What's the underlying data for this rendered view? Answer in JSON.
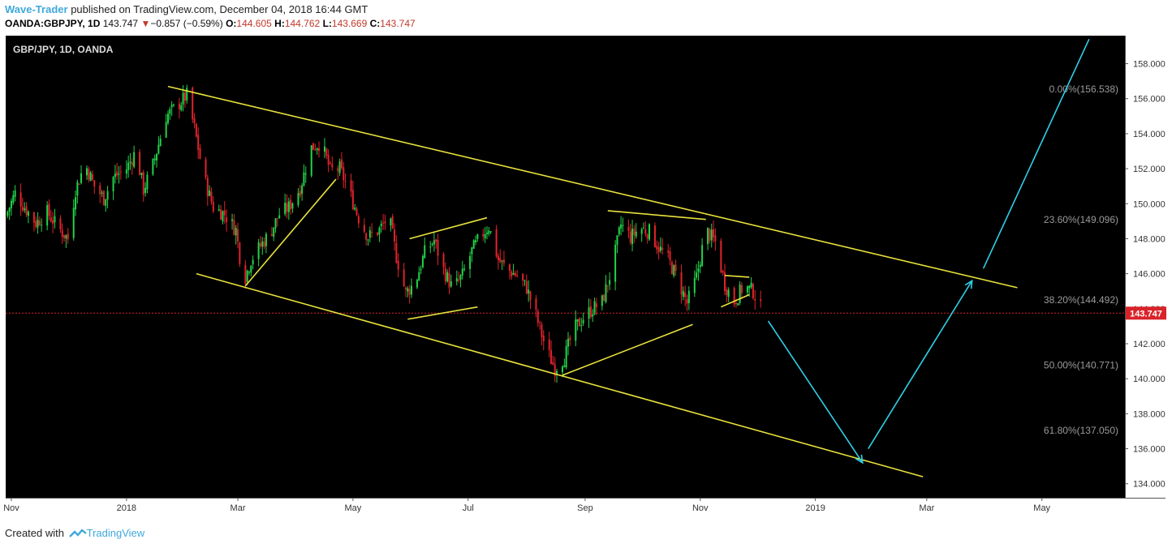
{
  "header": {
    "author": "Wave-Trader",
    "published_text": "published on TradingView.com, December 04, 2018 16:44 GMT",
    "symbol": "OANDA:GBPJPY, 1D",
    "last": "143.747",
    "change_arrow": "▼",
    "change": "−0.857 (−0.59%)",
    "o_label": "O:",
    "o_value": "144.605",
    "h_label": "H:",
    "h_value": "144.762",
    "l_label": "L:",
    "l_value": "143.669",
    "c_label": "C:",
    "c_value": "143.747"
  },
  "footer": {
    "created_with": "Created with",
    "brand": "TradingView"
  },
  "colors": {
    "background": "#000000",
    "up": "#22d34a",
    "down": "#e0232b",
    "trendline": "#e8e23c",
    "projection": "#2fd0e8",
    "price_line": "#d9232a",
    "fib_text": "#9a9a9a"
  },
  "chart_data": {
    "type": "candlestick",
    "title": "GBP/JPY, 1D, OANDA",
    "y_ticks": [
      134,
      136,
      138,
      140,
      142,
      144,
      146,
      148,
      150,
      152,
      154,
      156,
      158
    ],
    "y_tick_labels": [
      "134.000",
      "136.000",
      "138.000",
      "140.000",
      "142.000",
      "144.000",
      "146.000",
      "148.000",
      "150.000",
      "152.000",
      "154.000",
      "156.000",
      "158.000"
    ],
    "ylim": [
      133.2,
      159.6
    ],
    "x_labels": [
      "Nov",
      "2018",
      "Mar",
      "May",
      "Jul",
      "Sep",
      "Nov",
      "2019",
      "Mar",
      "May"
    ],
    "x_range": [
      "2017-10-29",
      "2019-06-14"
    ],
    "last_price": 143.747,
    "last_price_label": "143.747",
    "fibonacci": [
      {
        "label": "0.00%(156.538)",
        "value": 156.538
      },
      {
        "label": "23.60%(149.096)",
        "value": 149.096
      },
      {
        "label": "38.20%(144.492)",
        "value": 144.492
      },
      {
        "label": "50.00%(140.771)",
        "value": 140.771
      },
      {
        "label": "61.80%(137.050)",
        "value": 137.05
      }
    ],
    "price_path": [
      [
        "2017-10-29",
        149.3
      ],
      [
        "2017-11-03",
        150.6
      ],
      [
        "2017-11-08",
        149.8
      ],
      [
        "2017-11-14",
        148.9
      ],
      [
        "2017-11-20",
        149.5
      ],
      [
        "2017-11-26",
        148.6
      ],
      [
        "2017-12-01",
        148.0
      ],
      [
        "2017-12-05",
        150.8
      ],
      [
        "2017-12-10",
        152.3
      ],
      [
        "2017-12-15",
        151.0
      ],
      [
        "2017-12-20",
        150.3
      ],
      [
        "2017-12-25",
        151.5
      ],
      [
        "2018-01-01",
        152.0
      ],
      [
        "2018-01-06",
        153.0
      ],
      [
        "2018-01-10",
        150.8
      ],
      [
        "2018-01-15",
        152.2
      ],
      [
        "2018-01-22",
        155.0
      ],
      [
        "2018-01-28",
        155.6
      ],
      [
        "2018-02-02",
        156.2
      ],
      [
        "2018-02-06",
        154.3
      ],
      [
        "2018-02-11",
        151.5
      ],
      [
        "2018-02-16",
        149.8
      ],
      [
        "2018-02-22",
        149.4
      ],
      [
        "2018-02-28",
        148.5
      ],
      [
        "2018-03-04",
        145.5
      ],
      [
        "2018-03-08",
        146.8
      ],
      [
        "2018-03-13",
        147.6
      ],
      [
        "2018-03-18",
        148.3
      ],
      [
        "2018-03-23",
        149.4
      ],
      [
        "2018-03-28",
        149.8
      ],
      [
        "2018-04-03",
        150.9
      ],
      [
        "2018-04-09",
        153.2
      ],
      [
        "2018-04-14",
        153.5
      ],
      [
        "2018-04-19",
        151.9
      ],
      [
        "2018-04-24",
        152.0
      ],
      [
        "2018-04-29",
        150.7
      ],
      [
        "2018-05-04",
        149.2
      ],
      [
        "2018-05-09",
        148.1
      ],
      [
        "2018-05-15",
        148.5
      ],
      [
        "2018-05-20",
        149.3
      ],
      [
        "2018-05-24",
        147.0
      ],
      [
        "2018-05-29",
        144.9
      ],
      [
        "2018-06-03",
        145.5
      ],
      [
        "2018-06-08",
        147.2
      ],
      [
        "2018-06-13",
        147.9
      ],
      [
        "2018-06-18",
        146.2
      ],
      [
        "2018-06-23",
        145.1
      ],
      [
        "2018-06-28",
        145.9
      ],
      [
        "2018-07-03",
        147.3
      ],
      [
        "2018-07-08",
        148.2
      ],
      [
        "2018-07-12",
        148.7
      ],
      [
        "2018-07-17",
        146.8
      ],
      [
        "2018-07-22",
        146.2
      ],
      [
        "2018-07-27",
        145.9
      ],
      [
        "2018-08-01",
        145.2
      ],
      [
        "2018-08-06",
        143.6
      ],
      [
        "2018-08-11",
        141.8
      ],
      [
        "2018-08-16",
        140.6
      ],
      [
        "2018-08-21",
        141.2
      ],
      [
        "2018-08-26",
        142.8
      ],
      [
        "2018-08-31",
        143.5
      ],
      [
        "2018-09-05",
        144.0
      ],
      [
        "2018-09-10",
        144.4
      ],
      [
        "2018-09-15",
        146.2
      ],
      [
        "2018-09-20",
        148.8
      ],
      [
        "2018-09-25",
        148.1
      ],
      [
        "2018-09-30",
        148.6
      ],
      [
        "2018-10-05",
        148.4
      ],
      [
        "2018-10-10",
        147.5
      ],
      [
        "2018-10-15",
        146.8
      ],
      [
        "2018-10-20",
        145.7
      ],
      [
        "2018-10-25",
        144.3
      ],
      [
        "2018-10-30",
        145.8
      ],
      [
        "2018-11-04",
        148.5
      ],
      [
        "2018-11-09",
        147.8
      ],
      [
        "2018-11-14",
        145.4
      ],
      [
        "2018-11-19",
        144.4
      ],
      [
        "2018-11-24",
        145.3
      ],
      [
        "2018-11-29",
        145.0
      ],
      [
        "2018-12-04",
        143.75
      ]
    ],
    "annotations": [
      {
        "kind": "trendline",
        "color": "trendline",
        "points": [
          [
            "2018-01-23",
            156.7
          ],
          [
            "2019-04-18",
            145.2
          ]
        ]
      },
      {
        "kind": "trendline",
        "color": "trendline",
        "points": [
          [
            "2018-02-07",
            146.0
          ],
          [
            "2019-02-27",
            134.4
          ]
        ]
      },
      {
        "kind": "trendline",
        "color": "trendline",
        "points": [
          [
            "2018-03-05",
            145.3
          ],
          [
            "2018-04-22",
            151.4
          ]
        ]
      },
      {
        "kind": "trendline",
        "color": "trendline",
        "points": [
          [
            "2018-05-31",
            148.0
          ],
          [
            "2018-07-11",
            149.2
          ]
        ]
      },
      {
        "kind": "trendline",
        "color": "trendline",
        "points": [
          [
            "2018-05-30",
            143.4
          ],
          [
            "2018-07-06",
            144.1
          ]
        ]
      },
      {
        "kind": "trendline",
        "color": "trendline",
        "points": [
          [
            "2018-08-20",
            140.2
          ],
          [
            "2018-10-28",
            143.1
          ]
        ]
      },
      {
        "kind": "trendline",
        "color": "trendline",
        "points": [
          [
            "2018-09-13",
            149.6
          ],
          [
            "2018-11-04",
            149.1
          ]
        ]
      },
      {
        "kind": "trendline",
        "color": "trendline",
        "points": [
          [
            "2018-11-14",
            145.9
          ],
          [
            "2018-11-27",
            145.8
          ]
        ]
      },
      {
        "kind": "trendline",
        "color": "trendline",
        "points": [
          [
            "2018-11-12",
            144.1
          ],
          [
            "2018-11-27",
            144.8
          ]
        ]
      },
      {
        "kind": "arrow",
        "color": "projection",
        "points": [
          [
            "2018-12-07",
            143.3
          ],
          [
            "2019-01-26",
            135.2
          ]
        ]
      },
      {
        "kind": "arrow",
        "color": "projection",
        "points": [
          [
            "2019-01-29",
            136.0
          ],
          [
            "2019-03-25",
            145.6
          ]
        ]
      },
      {
        "kind": "line",
        "color": "projection",
        "points": [
          [
            "2019-03-31",
            146.3
          ],
          [
            "2019-05-26",
            159.4
          ]
        ]
      }
    ]
  }
}
